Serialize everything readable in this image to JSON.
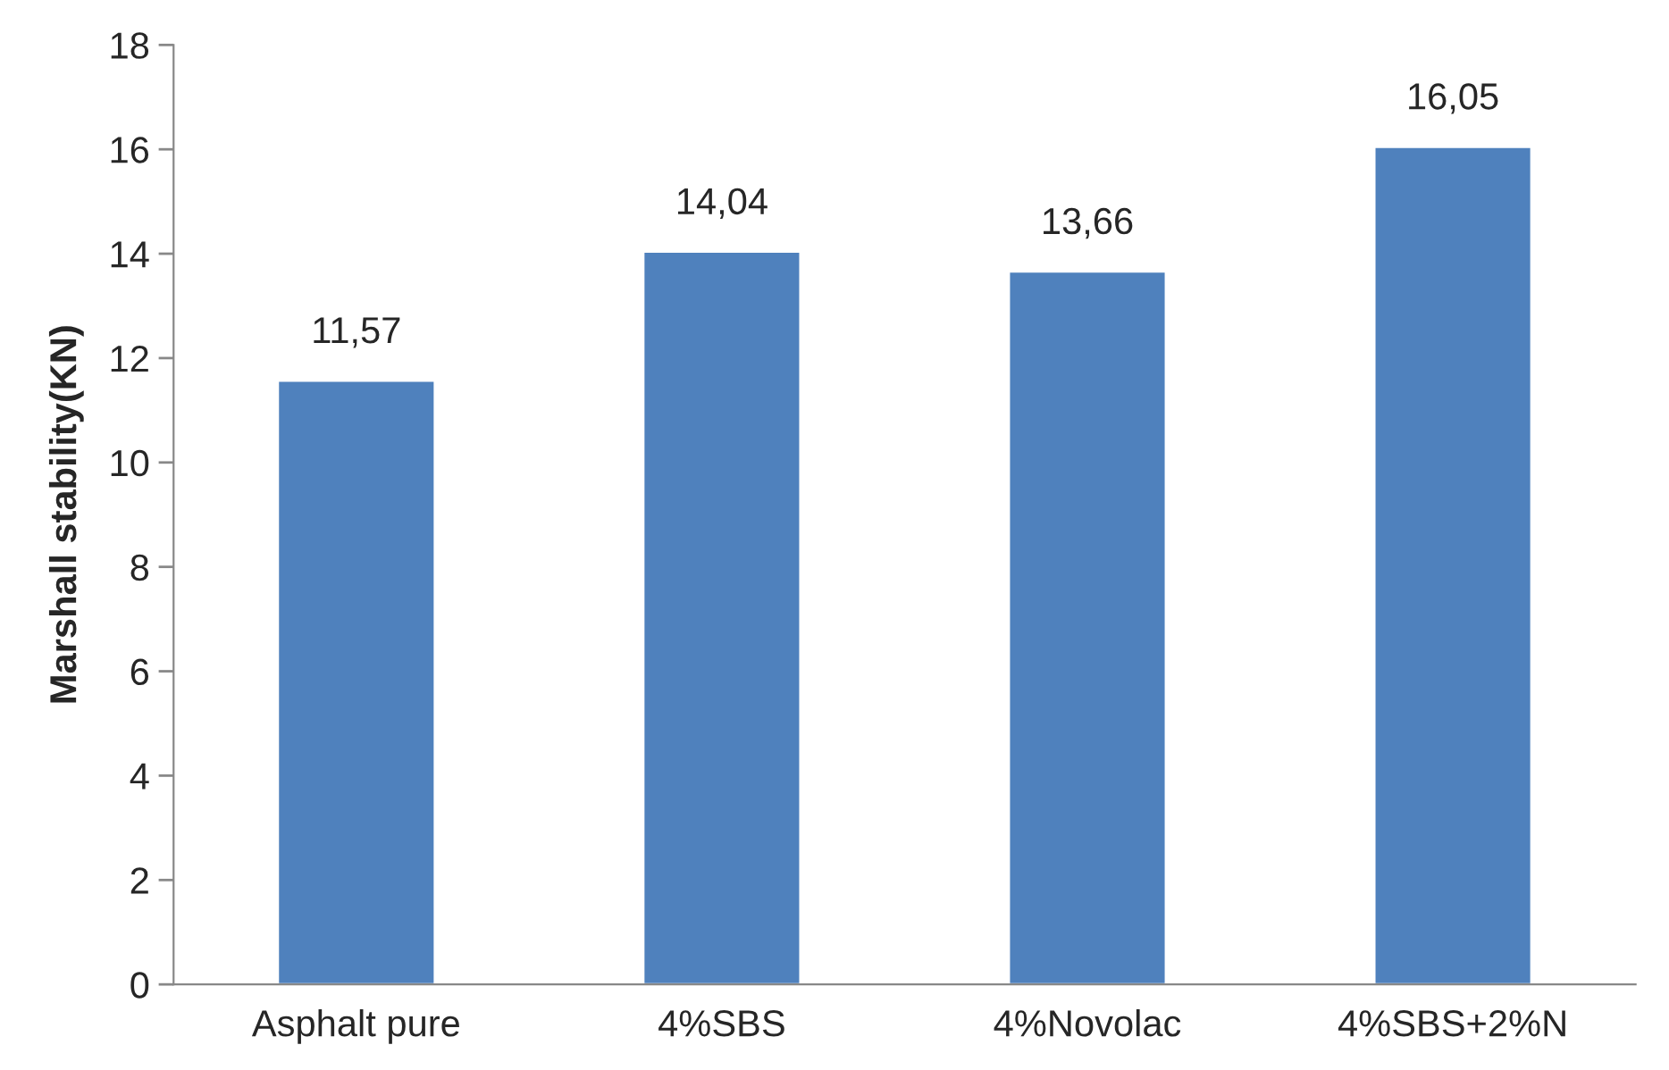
{
  "chart_data": {
    "type": "bar",
    "ylabel": "Marshall stability(KN)",
    "categories": [
      "Asphalt pure",
      "4%SBS",
      "4%Novolac",
      "4%SBS+2%N"
    ],
    "values": [
      11.57,
      14.04,
      13.66,
      16.05
    ],
    "value_labels": [
      "11,57",
      "14,04",
      "13,66",
      "16,05"
    ],
    "color": "#4f81bd",
    "ylim": [
      0,
      18
    ],
    "yticks": [
      0,
      2,
      4,
      6,
      8,
      10,
      12,
      14,
      16,
      18
    ],
    "grid": false,
    "legend": false
  }
}
